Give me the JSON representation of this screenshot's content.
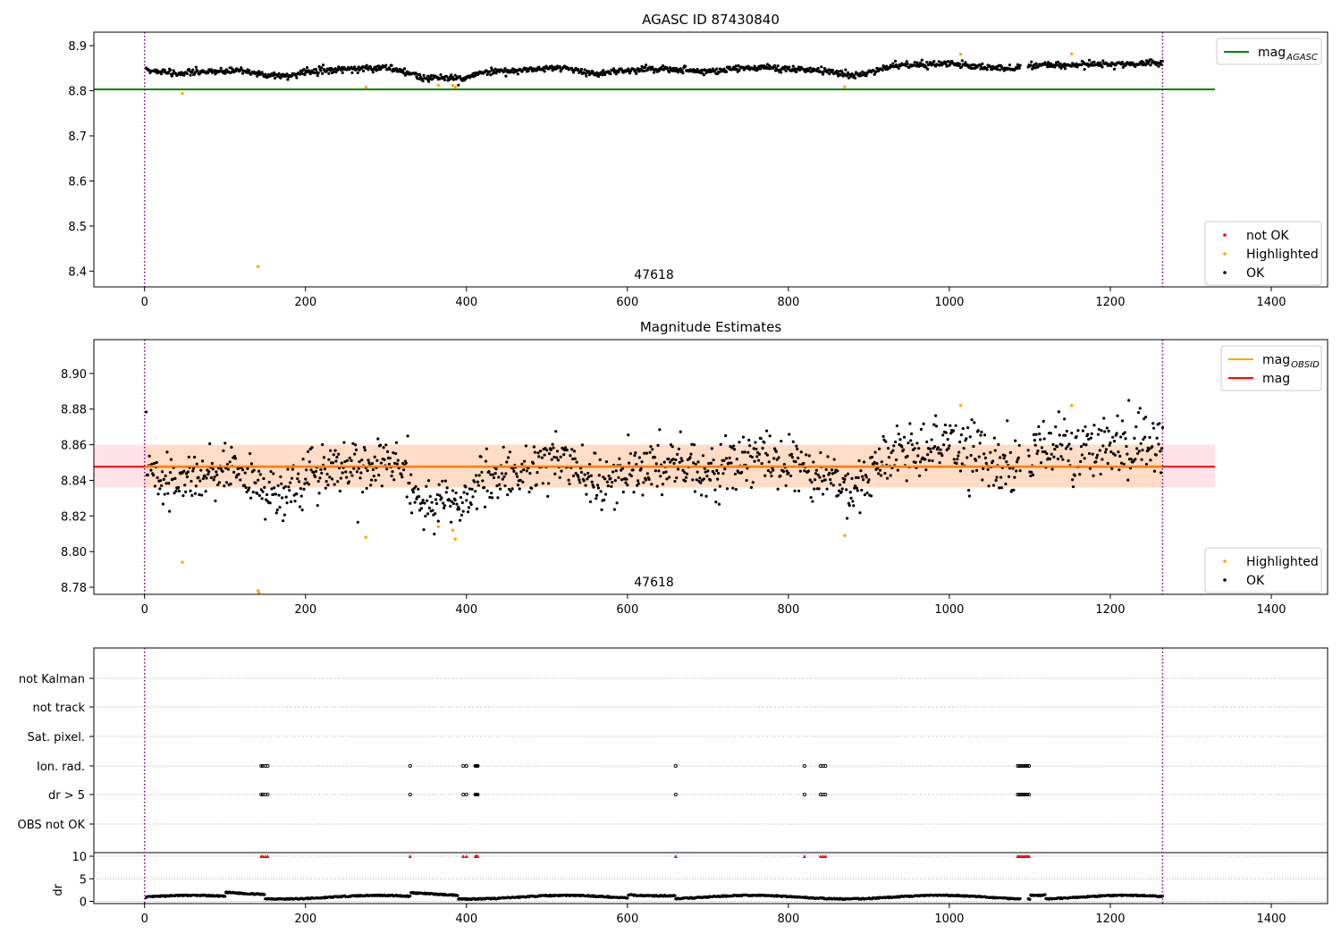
{
  "title": "AGASC ID 87430840",
  "colors": {
    "ok": "#000000",
    "highlighted": "#ffa500",
    "not_ok": "#ff0000",
    "agasc_line": "#008000",
    "obsid_line": "#ffa500",
    "mag_line": "#ff0000",
    "obsid_band": "#ffdab9",
    "mag_band": "#ffc0cb",
    "obs_boundary": "#800080"
  },
  "chart_data": [
    {
      "type": "scatter",
      "title": "AGASC ID 87430840",
      "xlim": [
        -63,
        1470
      ],
      "ylim": [
        8.365,
        8.93
      ],
      "xticks": [
        0,
        200,
        400,
        600,
        800,
        1000,
        1200,
        1400
      ],
      "yticks": [
        8.4,
        8.5,
        8.6,
        8.7,
        8.8,
        8.9
      ],
      "ytick_labels": [
        "8.4",
        "8.5",
        "8.6",
        "8.7",
        "8.8",
        "8.9"
      ],
      "annotation": {
        "text": "47618",
        "x": 633
      },
      "boundaries": [
        0,
        1265
      ],
      "mag_agasc": 8.803,
      "highlighted": [
        [
          47,
          8.794
        ],
        [
          141,
          8.41
        ],
        [
          275,
          8.808
        ],
        [
          365,
          8.812
        ],
        [
          383,
          8.812
        ],
        [
          386,
          8.808
        ],
        [
          870,
          8.809
        ],
        [
          1014,
          8.881
        ],
        [
          1152,
          8.882
        ]
      ],
      "legends": [
        {
          "position": "upper-right",
          "entries": [
            {
              "label": "mag",
              "subscript": "AGASC",
              "symbol": "line",
              "color": "#008000"
            }
          ]
        },
        {
          "position": "lower-right",
          "entries": [
            {
              "label": "not OK",
              "symbol": "dot",
              "color": "#ff0000"
            },
            {
              "label": "Highlighted",
              "symbol": "dot",
              "color": "#ffa500"
            },
            {
              "label": "OK",
              "symbol": "dot",
              "color": "#000000"
            }
          ]
        }
      ]
    },
    {
      "type": "scatter",
      "title": "Magnitude Estimates",
      "xlim": [
        -63,
        1470
      ],
      "ylim": [
        8.776,
        8.919
      ],
      "xticks": [
        0,
        200,
        400,
        600,
        800,
        1000,
        1200,
        1400
      ],
      "yticks": [
        8.78,
        8.8,
        8.82,
        8.84,
        8.86,
        8.88,
        8.9
      ],
      "ytick_labels": [
        "8.78",
        "8.80",
        "8.82",
        "8.84",
        "8.86",
        "8.88",
        "8.90"
      ],
      "annotation": {
        "text": "47618",
        "x": 633
      },
      "boundaries": [
        0,
        1265
      ],
      "mag_obsid": 8.8475,
      "mag": 8.8477,
      "mag_band": [
        8.836,
        8.86
      ],
      "highlighted": [
        [
          47,
          8.794
        ],
        [
          141,
          8.778
        ],
        [
          142,
          8.777
        ],
        [
          275,
          8.808
        ],
        [
          365,
          8.814
        ],
        [
          383,
          8.812
        ],
        [
          386,
          8.807
        ],
        [
          870,
          8.809
        ],
        [
          1014,
          8.882
        ],
        [
          1152,
          8.882
        ]
      ],
      "legends": [
        {
          "position": "upper-right",
          "entries": [
            {
              "label": "mag",
              "subscript": "OBSID",
              "symbol": "line",
              "color": "#ffa500"
            },
            {
              "label": "mag",
              "subscript": "",
              "symbol": "line",
              "color": "#ff0000"
            }
          ]
        },
        {
          "position": "lower-right",
          "entries": [
            {
              "label": "Highlighted",
              "symbol": "dot",
              "color": "#ffa500"
            },
            {
              "label": "OK",
              "symbol": "dot",
              "color": "#000000"
            }
          ]
        }
      ]
    },
    {
      "type": "scatter",
      "title": "",
      "xlim": [
        -63,
        1470
      ],
      "xticks": [
        0,
        200,
        400,
        600,
        800,
        1000,
        1200,
        1400
      ],
      "boundaries": [
        0,
        1265
      ],
      "flag_labels": [
        "not Kalman",
        "not track",
        "Sat. pixel.",
        "Ion. rad.",
        "dr > 5",
        "OBS not OK"
      ],
      "flag_positions": {
        "Ion. rad.": [
          145,
          147,
          150,
          153,
          330,
          396,
          400,
          411,
          412,
          413,
          414,
          660,
          820,
          840,
          843,
          846,
          1085,
          1087,
          1089,
          1091,
          1093,
          1095,
          1097,
          1099
        ],
        "dr > 5": [
          145,
          147,
          150,
          153,
          330,
          396,
          400,
          411,
          412,
          413,
          414,
          660,
          820,
          840,
          843,
          846,
          1085,
          1087,
          1089,
          1091,
          1093,
          1095,
          1097,
          1099
        ]
      },
      "dr_ylim": [
        -0.5,
        10.8
      ],
      "dr_yticks": [
        0,
        5,
        10
      ],
      "dr_ylabel": "dr",
      "dr_clipped_at": 10,
      "dr_clipped_x": [
        145,
        147,
        150,
        153,
        330,
        396,
        400,
        411,
        412,
        413,
        414,
        660,
        820,
        840,
        843,
        846,
        1085,
        1087,
        1089,
        1091,
        1093,
        1095,
        1097,
        1099
      ]
    }
  ]
}
